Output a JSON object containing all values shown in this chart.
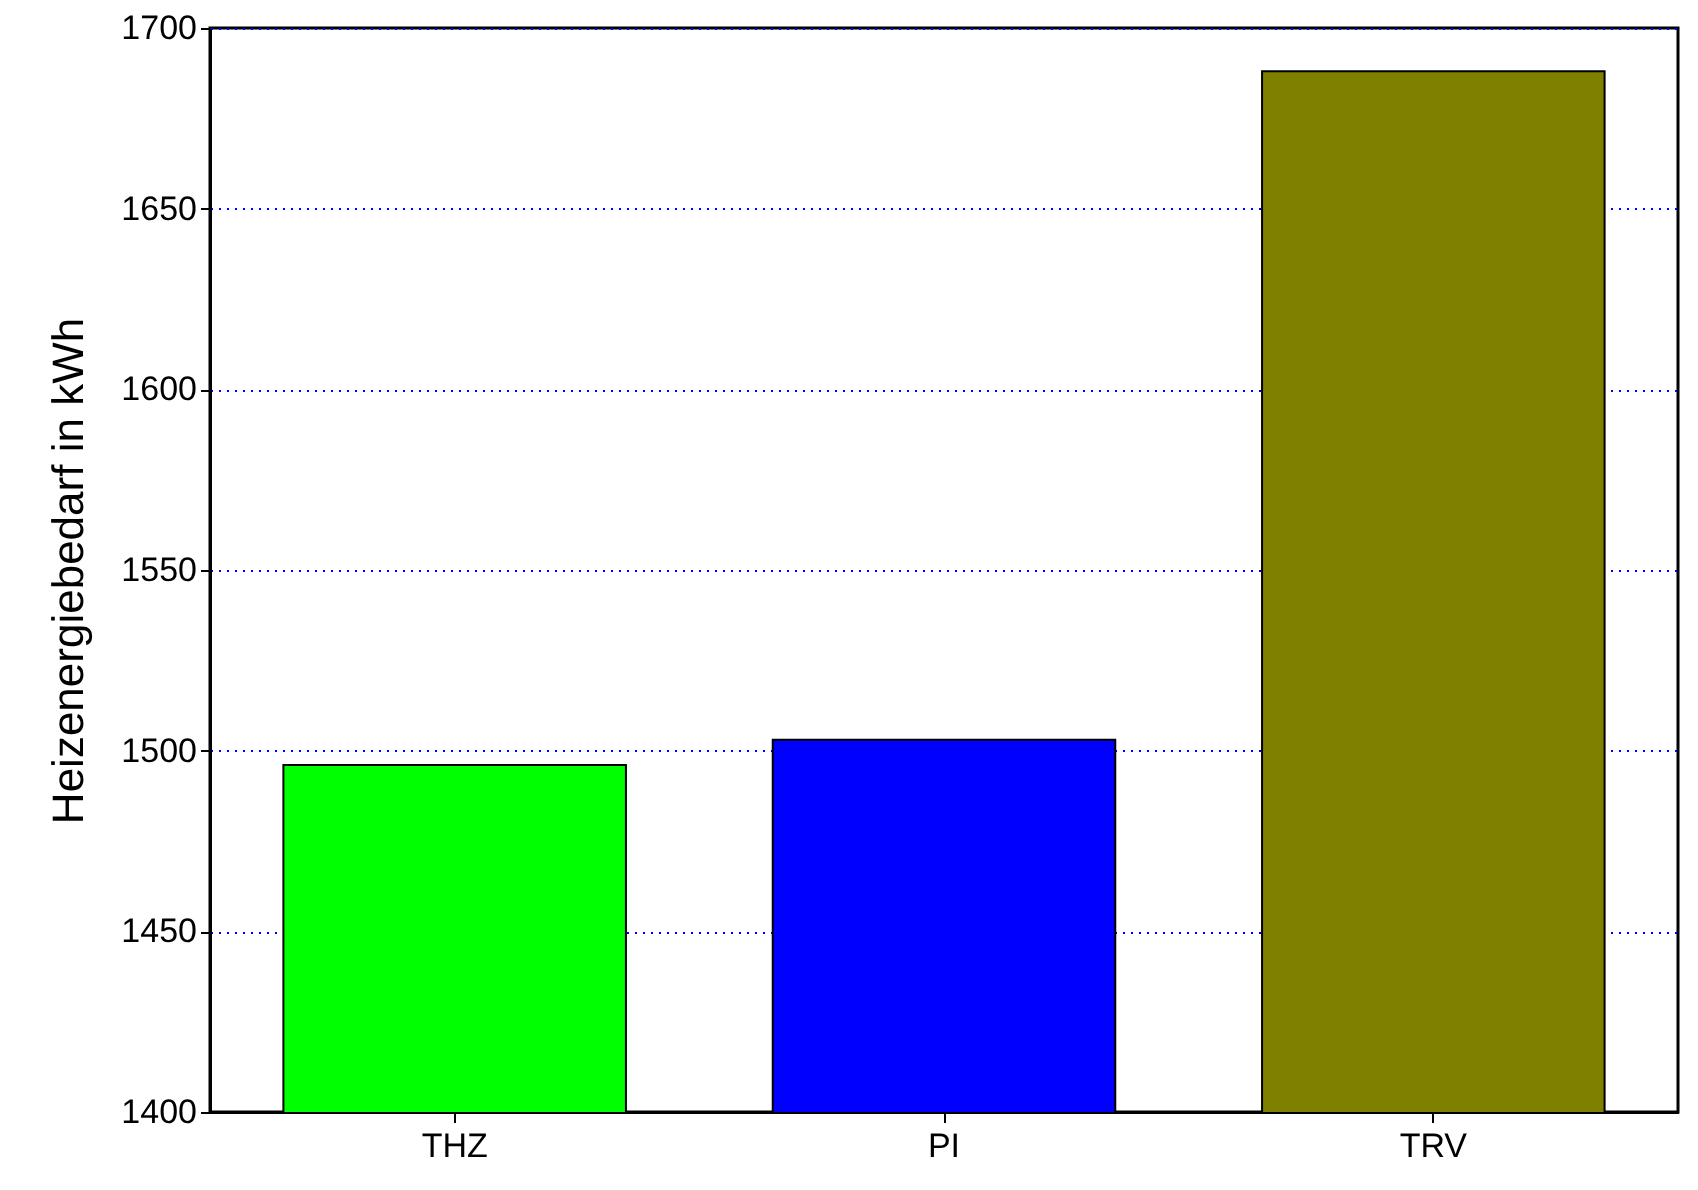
{
  "chart_data": {
    "type": "bar",
    "ylabel": "Heizenergiebedarf in kWh",
    "categories": [
      "THZ",
      "PI",
      "TRV"
    ],
    "values": [
      1496,
      1503,
      1688
    ],
    "colors": [
      "#00ff00",
      "#0000ff",
      "#808000"
    ],
    "ylim": [
      1400,
      1700
    ],
    "yticks": [
      1400,
      1450,
      1500,
      1550,
      1600,
      1650,
      1700
    ],
    "grid": "y"
  }
}
